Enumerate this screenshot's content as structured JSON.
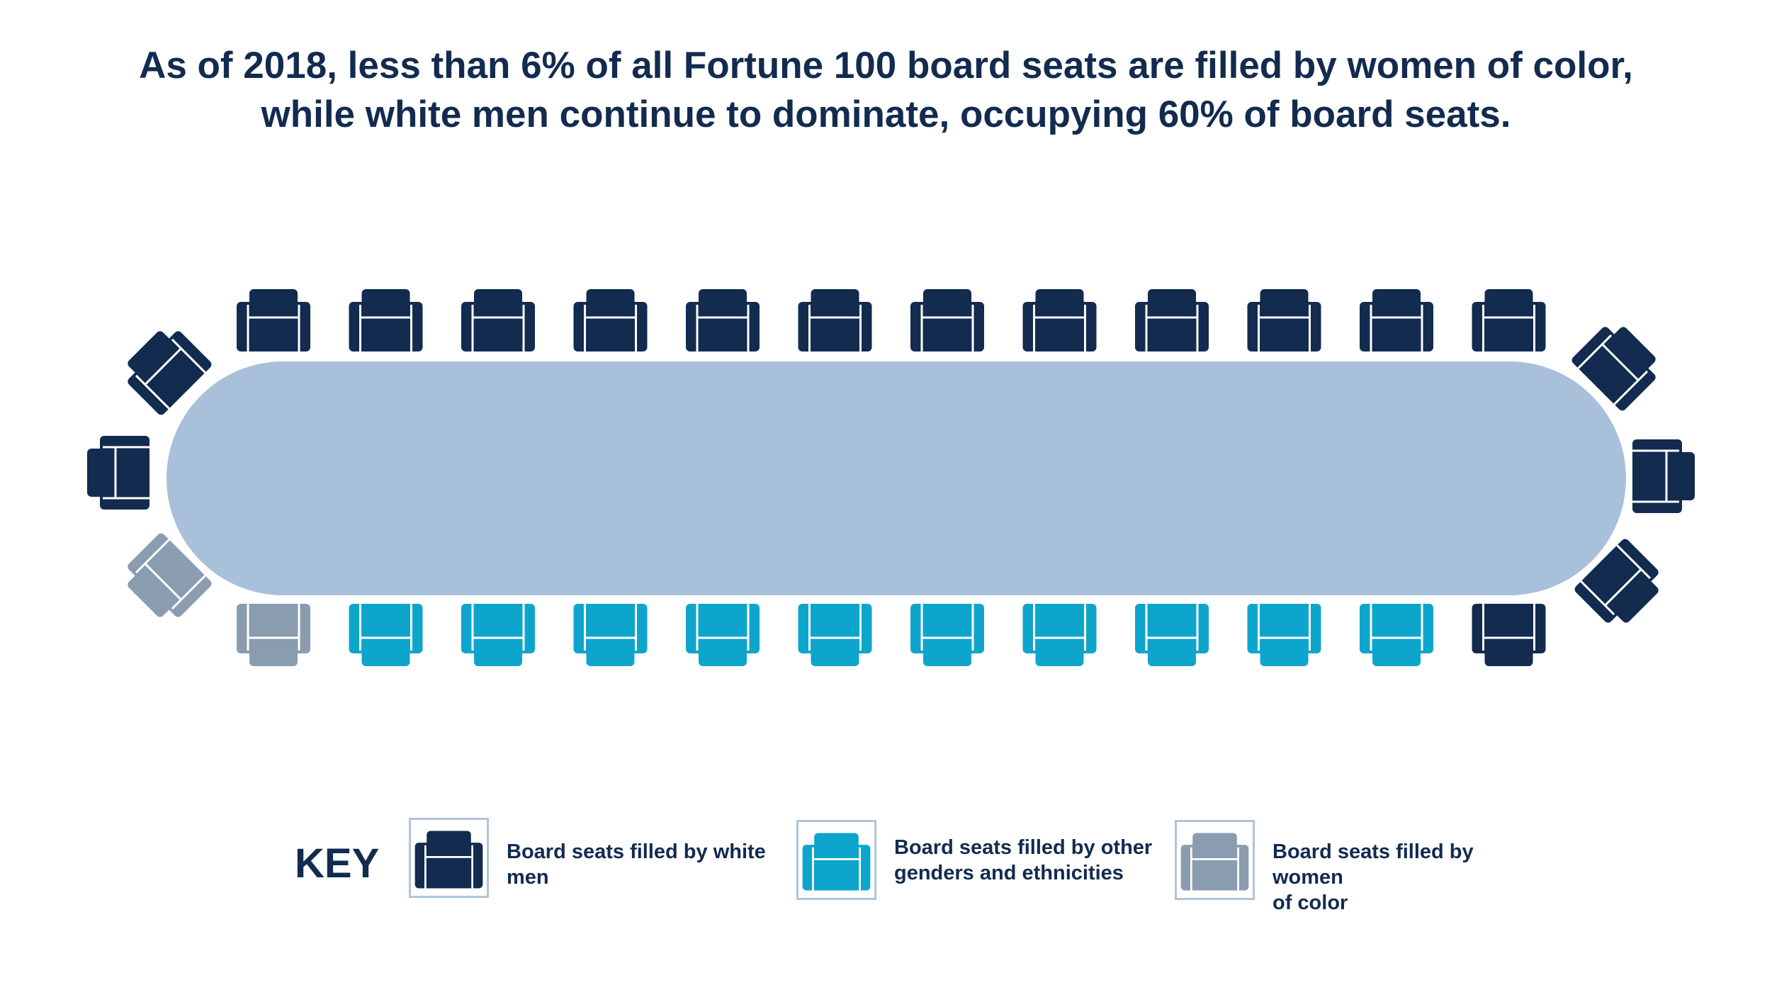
{
  "title": {
    "line1": "As of 2018, less than 6% of all Fortune 100 board seats are filled by women of color,",
    "line2": "while white men continue to dominate, occupying 60% of board seats."
  },
  "colors": {
    "white_men": "#122b4f",
    "other": "#0ea5cd",
    "women_of_color": "#8a9caf",
    "table": "#a8c0d9",
    "title_text": "#122b4f",
    "key_border": "#b2c4da"
  },
  "seats": {
    "top_row": [
      "white_men",
      "white_men",
      "white_men",
      "white_men",
      "white_men",
      "white_men",
      "white_men",
      "white_men",
      "white_men",
      "white_men",
      "white_men",
      "white_men"
    ],
    "bottom_row": [
      "women_of_color",
      "other",
      "other",
      "other",
      "other",
      "other",
      "other",
      "other",
      "other",
      "other",
      "other",
      "white_men"
    ],
    "left_end": [
      "white_men",
      "white_men",
      "women_of_color"
    ],
    "right_end": [
      "white_men",
      "white_men",
      "white_men"
    ]
  },
  "key": {
    "label": "KEY",
    "items": [
      {
        "category": "white_men",
        "line1": "Board seats filled by white",
        "line2": "men"
      },
      {
        "category": "other",
        "line1": "Board seats filled by other",
        "line2": "genders and ethnicities"
      },
      {
        "category": "women_of_color",
        "line1": "Board seats filled by women",
        "line2": "of color"
      }
    ]
  }
}
